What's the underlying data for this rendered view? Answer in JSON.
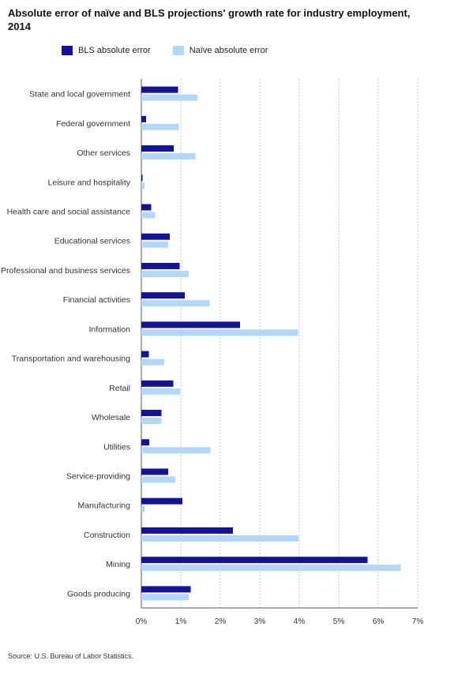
{
  "title": "Absolute error of naïve and BLS projections' growth rate for industry employment, 2014",
  "source": "Source: U.S. Bureau of Labor Statistics.",
  "colors": {
    "bls": "#12129a",
    "naive": "#b3d6fb",
    "grid": "#c8c8c8",
    "axis": "#555555"
  },
  "chart_data": {
    "type": "bar",
    "orientation": "horizontal",
    "title": "Absolute error of naïve and BLS projections' growth rate for industry employment, 2014",
    "categories": [
      "State and local government",
      "Federal government",
      "Other services",
      "Leisure and hospitality",
      "Health care and social assistance",
      "Educational services",
      "Professional and business services",
      "Financial activities",
      "Information",
      "Transportation and warehousing",
      "Retail",
      "Wholesale",
      "Utilities",
      "Service-providing",
      "Manufacturing",
      "Construction",
      "Mining",
      "Goods producing"
    ],
    "series": [
      {
        "name": "BLS absolute error",
        "values": [
          0.93,
          0.12,
          0.82,
          0.03,
          0.25,
          0.72,
          0.97,
          1.1,
          2.5,
          0.19,
          0.81,
          0.51,
          0.2,
          0.68,
          1.04,
          2.32,
          5.73,
          1.25
        ]
      },
      {
        "name": "Naïve absolute error",
        "values": [
          1.42,
          0.95,
          1.37,
          0.08,
          0.35,
          0.68,
          1.2,
          1.73,
          3.97,
          0.58,
          0.98,
          0.51,
          1.75,
          0.86,
          0.08,
          3.98,
          6.57,
          1.2
        ]
      }
    ],
    "xlim": [
      0,
      7
    ],
    "xticks": [
      "0%",
      "1%",
      "2%",
      "3%",
      "4%",
      "5%",
      "6%",
      "7%"
    ],
    "grid": true,
    "legend": "top-left"
  }
}
